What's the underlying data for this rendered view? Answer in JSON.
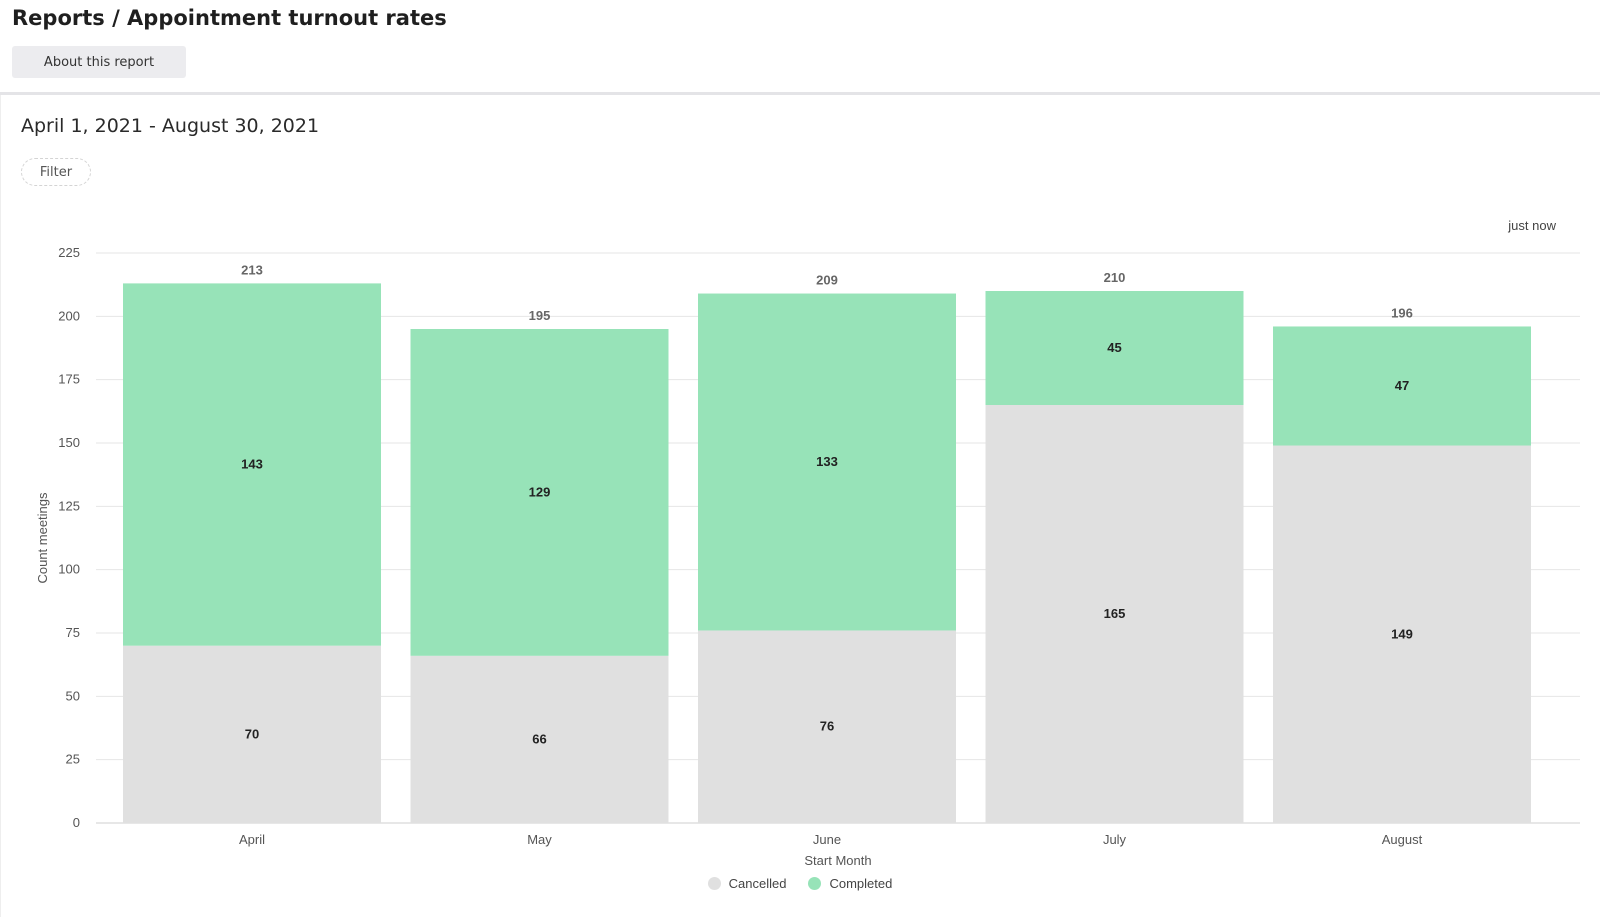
{
  "header": {
    "title": "Reports / Appointment turnout rates",
    "about_label": "About this report"
  },
  "main": {
    "date_range": "April 1, 2021 - August 30, 2021",
    "filter_label": "Filter",
    "timestamp": "just now"
  },
  "colors": {
    "cancelled": "#e0e0e0",
    "completed": "#97e3b8",
    "grid": "#e6e6e6"
  },
  "chart_data": {
    "type": "bar",
    "stacked": true,
    "categories": [
      "April",
      "May",
      "June",
      "July",
      "August"
    ],
    "series": [
      {
        "name": "Cancelled",
        "values": [
          70,
          66,
          76,
          165,
          149
        ]
      },
      {
        "name": "Completed",
        "values": [
          143,
          129,
          133,
          45,
          47
        ]
      }
    ],
    "totals": [
      213,
      195,
      209,
      210,
      196
    ],
    "xlabel": "Start Month",
    "ylabel": "Count meetings",
    "ylim": [
      0,
      225
    ],
    "yticks": [
      0,
      25,
      50,
      75,
      100,
      125,
      150,
      175,
      200,
      225
    ],
    "grid": true,
    "legend": "bottom-center"
  }
}
